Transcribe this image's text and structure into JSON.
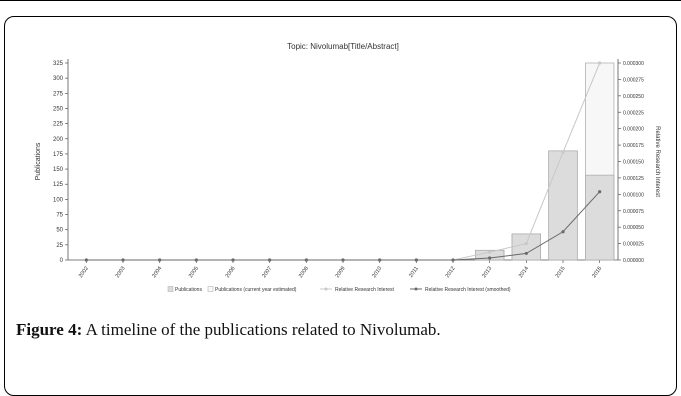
{
  "caption": {
    "label": "Figure 4:",
    "text": " A timeline of the publications related to Nivolumab."
  },
  "colors": {
    "bar_fill": "#dcdcdc",
    "bar_estimated_fill": "#f7f7f7",
    "bar_stroke": "#a8a8a8",
    "interest_line": "#c8c8c8",
    "smoothed_line": "#6a6a6a",
    "axis": "#555555",
    "text": "#333333"
  },
  "chart_data": {
    "type": "bar",
    "title": "Topic: Nivolumab[Title/Abstract]",
    "ylabel": "Publications",
    "y2label": "Relative Research Interest",
    "categories": [
      "2002",
      "2003",
      "2004",
      "2005",
      "2006",
      "2007",
      "2008",
      "2009",
      "2010",
      "2011",
      "2012",
      "2013",
      "2014",
      "2015",
      "2016"
    ],
    "ylim": [
      0,
      325
    ],
    "yticks": [
      "0",
      "25",
      "50",
      "75",
      "100",
      "125",
      "150",
      "175",
      "200",
      "225",
      "250",
      "275",
      "300",
      "325"
    ],
    "y2lim": [
      0,
      0.0003
    ],
    "y2ticks": [
      "0.000000",
      "0.000025",
      "0.000050",
      "0.000075",
      "0.000100",
      "0.000125",
      "0.000150",
      "0.000175",
      "0.000200",
      "0.000225",
      "0.000250",
      "0.000275",
      "0.000300"
    ],
    "series": [
      {
        "name": "Publications",
        "kind": "bar",
        "values": [
          0,
          0,
          0,
          0,
          0,
          0,
          0,
          0,
          0,
          0,
          0,
          16,
          43,
          180,
          140
        ]
      },
      {
        "name": "Publications (current year estimated)",
        "kind": "bar-estimated",
        "values": [
          0,
          0,
          0,
          0,
          0,
          0,
          0,
          0,
          0,
          0,
          0,
          16,
          43,
          180,
          325
        ]
      },
      {
        "name": "Relative Research Interest",
        "kind": "line",
        "axis": "right",
        "values": [
          0,
          0,
          0,
          0,
          0,
          0,
          0,
          0,
          0,
          0,
          0,
          1.2e-05,
          2.5e-05,
          0.000164,
          0.0003
        ]
      },
      {
        "name": "Relative Research Interest (smoothed)",
        "kind": "line",
        "axis": "right",
        "values": [
          0,
          0,
          0,
          0,
          0,
          0,
          0,
          0,
          0,
          0,
          0,
          3e-06,
          1e-05,
          4.3e-05,
          0.000104
        ]
      }
    ],
    "legend_position": "bottom",
    "grid": false
  }
}
